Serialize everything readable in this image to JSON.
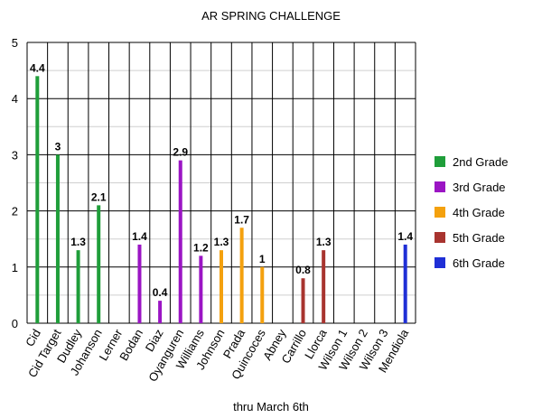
{
  "chart_data": {
    "type": "bar",
    "title": "AR SPRING CHALLENGE",
    "xlabel": "thru March 6th",
    "ylabel": "",
    "ylim": [
      0,
      5
    ],
    "yticks": [
      0,
      1,
      2,
      3,
      4,
      5
    ],
    "grid": true,
    "legend_position": "right",
    "categories": [
      "Cid",
      "Cid Target",
      "Dudley",
      "Johanson",
      "Lerner",
      "Bodan",
      "Diaz",
      "Oyanguren",
      "Williams",
      "Johnson",
      "Prada",
      "Quincoces",
      "Abney",
      "Carrillo",
      "Llorca",
      "Wilson 1",
      "Wilson 2",
      "Wilson 3",
      "Mendiola"
    ],
    "series": [
      {
        "name": "2nd Grade",
        "color": "#1f9e3a",
        "values": [
          4.4,
          3,
          1.3,
          2.1,
          null,
          null,
          null,
          null,
          null,
          null,
          null,
          null,
          null,
          null,
          null,
          null,
          null,
          null,
          null
        ]
      },
      {
        "name": "3rd Grade",
        "color": "#9b15c4",
        "values": [
          null,
          null,
          null,
          null,
          null,
          1.4,
          0.4,
          2.9,
          1.2,
          null,
          null,
          null,
          null,
          null,
          null,
          null,
          null,
          null,
          null
        ]
      },
      {
        "name": "4th Grade",
        "color": "#f4a10e",
        "values": [
          null,
          null,
          null,
          null,
          null,
          null,
          null,
          null,
          null,
          1.3,
          1.7,
          1,
          null,
          null,
          null,
          null,
          null,
          null,
          null
        ]
      },
      {
        "name": "5th Grade",
        "color": "#a8342f",
        "values": [
          null,
          null,
          null,
          null,
          null,
          null,
          null,
          null,
          null,
          null,
          null,
          null,
          null,
          0.8,
          1.3,
          null,
          null,
          null,
          null
        ]
      },
      {
        "name": "6th Grade",
        "color": "#1f2fd6",
        "values": [
          null,
          null,
          null,
          null,
          null,
          null,
          null,
          null,
          null,
          null,
          null,
          null,
          null,
          null,
          null,
          null,
          null,
          null,
          1.4
        ]
      }
    ],
    "data_labels": [
      "4.4",
      "3",
      "1.3",
      "2.1",
      "",
      "1.4",
      "0.4",
      "2.9",
      "1.2",
      "1.3",
      "1.7",
      "1",
      "",
      "0.8",
      "1.3",
      "",
      "",
      "",
      "1.4"
    ]
  }
}
